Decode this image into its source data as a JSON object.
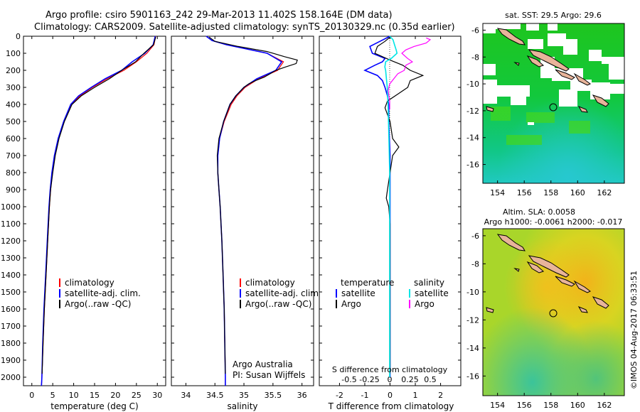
{
  "header": {
    "line1": "Argo profile: csiro 5901163_242 29-Mar-2013 11.402S 158.164E (DM data)",
    "line2": "Climatology: CARS2009. Satellite-adjusted climatology: synTS_20130329.nc (0.35d earlier)"
  },
  "colors": {
    "climatology": "#ff0000",
    "satellite": "#0000ff",
    "argo": "#000000",
    "sal_satellite": "#00e5e5",
    "sal_argo": "#ff00ff",
    "land": "#e8b49a"
  },
  "credit": {
    "line1": "Argo Australia",
    "line2": "PI: Susan Wijffels"
  },
  "stamp": "©IMOS 04-Aug-2017 06:33:51",
  "maps": {
    "sst_title": "sat. SST: 29.5 Argo: 29.6",
    "sla_title1": "Altim. SLA: 0.0058",
    "sla_title2": "Argo h1000: -0.0061 h2000: -0.017",
    "xticks": [
      "154",
      "156",
      "158",
      "160",
      "162"
    ],
    "yticks": [
      "-6",
      "-8",
      "-10",
      "-12",
      "-14",
      "-16"
    ]
  },
  "chart_data": [
    {
      "type": "line",
      "title": "",
      "xlabel": "temperature (deg C)",
      "ylabel": "",
      "xlim": [
        -2,
        32
      ],
      "ylim": [
        2050,
        0
      ],
      "xticks": [
        "0",
        "5",
        "10",
        "15",
        "20",
        "25",
        "30"
      ],
      "yticks": [
        "0",
        "100",
        "200",
        "300",
        "400",
        "500",
        "600",
        "700",
        "800",
        "900",
        "1000",
        "1100",
        "1200",
        "1300",
        "1400",
        "1500",
        "1600",
        "1700",
        "1800",
        "1900",
        "2000"
      ],
      "legend": [
        "climatology",
        "satellite-adj. clim.",
        "Argo(..raw -QC)"
      ],
      "series": [
        {
          "name": "climatology",
          "depth": [
            0,
            50,
            100,
            150,
            200,
            250,
            300,
            350,
            400,
            500,
            600,
            700,
            800,
            900,
            1000,
            1200,
            1400,
            1600,
            1800,
            2000,
            2050
          ],
          "values": [
            29.6,
            29.2,
            27.5,
            25.0,
            22.0,
            18.0,
            14.5,
            11.5,
            9.5,
            7.7,
            6.4,
            5.5,
            4.9,
            4.5,
            4.2,
            3.8,
            3.4,
            3.0,
            2.7,
            2.4,
            2.3
          ]
        },
        {
          "name": "satellite-adj. clim.",
          "depth": [
            0,
            50,
            100,
            150,
            200,
            250,
            300,
            350,
            400,
            500,
            600,
            700,
            800,
            900,
            1000,
            1200,
            1400,
            1600,
            1800,
            2000,
            2050
          ],
          "values": [
            29.5,
            29.0,
            27.0,
            24.0,
            21.5,
            17.5,
            14.2,
            11.2,
            9.3,
            7.6,
            6.3,
            5.4,
            4.8,
            4.4,
            4.1,
            3.7,
            3.3,
            2.9,
            2.6,
            2.4,
            2.3
          ]
        },
        {
          "name": "Argo(..raw -QC)",
          "depth": [
            5,
            50,
            100,
            150,
            200,
            250,
            300,
            350,
            400,
            500,
            600,
            700,
            800,
            900,
            1000,
            1200,
            1400,
            1600,
            1800,
            1980
          ],
          "values": [
            29.6,
            29.1,
            26.8,
            24.8,
            21.5,
            18.5,
            15.0,
            11.8,
            9.6,
            7.8,
            6.5,
            5.6,
            5.0,
            4.5,
            4.2,
            3.8,
            3.4,
            3.0,
            2.7,
            2.45
          ]
        }
      ]
    },
    {
      "type": "line",
      "title": "",
      "xlabel": "salinity",
      "ylabel": "",
      "xlim": [
        33.75,
        36.2
      ],
      "ylim": [
        2050,
        0
      ],
      "xticks": [
        "34",
        "34.5",
        "35",
        "35.5",
        "36"
      ],
      "legend": [
        "climatology",
        "satellite-adj. clim.",
        "Argo(..raw -QC)"
      ],
      "series": [
        {
          "name": "climatology",
          "depth": [
            0,
            25,
            50,
            100,
            150,
            200,
            250,
            300,
            350,
            400,
            500,
            600,
            700,
            800,
            900,
            1000,
            1200,
            1400,
            1600,
            1800,
            2000,
            2050
          ],
          "values": [
            34.35,
            34.45,
            34.7,
            35.4,
            35.68,
            35.58,
            35.25,
            35.02,
            34.88,
            34.78,
            34.66,
            34.58,
            34.55,
            34.55,
            34.57,
            34.59,
            34.62,
            34.64,
            34.66,
            34.67,
            34.68,
            34.68
          ]
        },
        {
          "name": "satellite-adj. clim.",
          "depth": [
            0,
            25,
            50,
            100,
            150,
            200,
            250,
            300,
            350,
            400,
            500,
            600,
            700,
            800,
            900,
            1000,
            1200,
            1400,
            1600,
            1800,
            2000,
            2050
          ],
          "values": [
            34.35,
            34.45,
            34.7,
            35.4,
            35.65,
            35.55,
            35.22,
            35.0,
            34.86,
            34.76,
            34.65,
            34.58,
            34.55,
            34.55,
            34.57,
            34.59,
            34.62,
            34.64,
            34.66,
            34.67,
            34.68,
            34.68
          ]
        },
        {
          "name": "Argo(..raw -QC)",
          "depth": [
            5,
            30,
            60,
            90,
            120,
            140,
            160,
            180,
            200,
            220,
            240,
            260,
            280,
            300,
            350,
            400,
            500,
            600,
            700,
            800,
            900,
            1000,
            1200,
            1400,
            1600,
            1800,
            1980
          ],
          "values": [
            34.4,
            34.5,
            34.9,
            35.4,
            35.7,
            35.92,
            35.9,
            35.72,
            35.55,
            35.45,
            35.35,
            35.2,
            35.08,
            35.0,
            34.86,
            34.76,
            34.65,
            34.57,
            34.54,
            34.55,
            34.57,
            34.59,
            34.62,
            34.64,
            34.66,
            34.67,
            34.68
          ]
        }
      ]
    },
    {
      "type": "line",
      "title": "S difference from climatology",
      "xlabel": "T difference from climatology",
      "ylabel": "",
      "xlim": [
        -2.8,
        2.8
      ],
      "ylim": [
        2050,
        0
      ],
      "xticks": [
        "-2",
        "-1",
        "0",
        "1",
        "2"
      ],
      "top_ticks": [
        "-0.5",
        "-0.25",
        "0",
        "0.25",
        "0.5"
      ],
      "legend_titles": [
        "temperature",
        "salinity"
      ],
      "legend": [
        "satellite",
        "Argo",
        "satellite",
        "Argo"
      ],
      "series": [
        {
          "name": "temperature satellite",
          "depth": [
            0,
            30,
            60,
            100,
            130,
            150,
            170,
            200,
            230,
            260,
            300,
            350,
            400,
            500,
            700,
            900,
            1100,
            1400,
            2000
          ],
          "values": [
            0.0,
            -0.4,
            -0.8,
            -0.7,
            -0.2,
            -0.3,
            -0.6,
            -1.0,
            -0.5,
            -0.3,
            -0.2,
            -0.1,
            -0.05,
            -0.05,
            0.0,
            0.0,
            0.0,
            0.0,
            0.0
          ]
        },
        {
          "name": "temperature Argo",
          "depth": [
            5,
            30,
            60,
            100,
            140,
            170,
            200,
            230,
            260,
            300,
            340,
            380,
            420,
            500,
            600,
            650,
            700,
            800,
            900,
            950,
            1000,
            1100,
            1400,
            1980
          ],
          "values": [
            0.0,
            -0.2,
            -0.5,
            -0.6,
            0.0,
            0.5,
            0.8,
            1.3,
            0.8,
            0.7,
            0.3,
            -0.1,
            -0.2,
            0.0,
            0.1,
            0.35,
            0.1,
            0.0,
            -0.1,
            -0.15,
            -0.05,
            0.0,
            0.0,
            0.0
          ]
        },
        {
          "name": "salinity satellite",
          "depth": [
            0,
            20,
            50,
            80,
            100,
            130,
            150,
            180,
            200,
            250,
            300,
            400,
            600,
            800,
            1000,
            1400,
            2000
          ],
          "values": [
            0.0,
            0.04,
            0.06,
            0.08,
            0.09,
            0.02,
            -0.05,
            -0.06,
            -0.05,
            -0.04,
            -0.03,
            -0.02,
            -0.01,
            0.0,
            0.0,
            0.0,
            0.0
          ]
        },
        {
          "name": "salinity Argo",
          "depth": [
            10,
            20,
            40,
            60,
            80,
            100,
            130,
            150,
            170,
            200,
            220,
            250,
            280,
            320,
            380,
            430
          ],
          "values": [
            0.45,
            0.5,
            0.45,
            0.3,
            0.2,
            0.15,
            0.22,
            0.28,
            0.2,
            0.18,
            0.1,
            0.05,
            0.0,
            -0.02,
            0.0,
            0.0
          ]
        }
      ]
    },
    {
      "type": "heatmap",
      "title": "sat. SST: 29.5 Argo: 29.6",
      "xlabel": "",
      "ylabel": "",
      "xlim": [
        152.9,
        163.5
      ],
      "ylim": [
        -17.4,
        -5.5
      ],
      "argo_location": {
        "lon": 158.164,
        "lat": -11.402
      }
    },
    {
      "type": "heatmap",
      "title": "Altim. SLA: 0.0058",
      "xlabel": "",
      "ylabel": "",
      "xlim": [
        152.9,
        163.5
      ],
      "ylim": [
        -17.4,
        -5.5
      ],
      "argo_location": {
        "lon": 158.164,
        "lat": -11.402
      }
    }
  ]
}
